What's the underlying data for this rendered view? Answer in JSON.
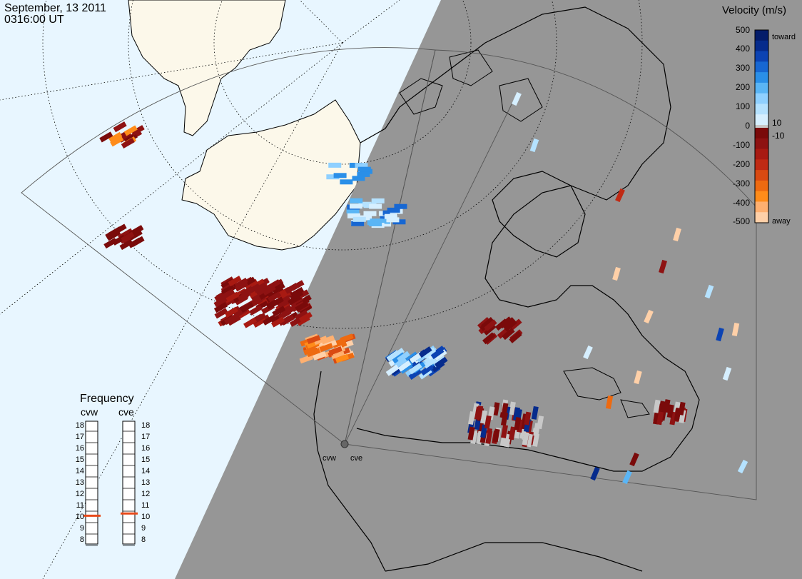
{
  "header": {
    "date": "September, 13 2011",
    "time": "0316:00 UT"
  },
  "legend": {
    "title": "Velocity (m/s)",
    "ticks": [
      "500",
      "400",
      "300",
      "200",
      "100",
      "10",
      "0",
      "-10",
      "-100",
      "-200",
      "-300",
      "-400",
      "-500"
    ],
    "toward_label": "toward",
    "away_label": "away",
    "colors_toward": [
      "#d6efff",
      "#b5e2ff",
      "#8fd0ff",
      "#5ab5f5",
      "#2a8fe8",
      "#1767d2",
      "#0c43b3",
      "#062b8c",
      "#041c6a"
    ],
    "colors_away": [
      "#7a0a0a",
      "#8e1212",
      "#a81a12",
      "#c02a14",
      "#d94a12",
      "#ee6a10",
      "#ff8c1a",
      "#ffb070",
      "#ffd0a8"
    ],
    "ground_scatter_color": "#c8c8c8"
  },
  "frequency_panel": {
    "title": "Frequency",
    "radars": [
      {
        "label": "cvw",
        "value_mhz": 10.6
      },
      {
        "label": "cve",
        "value_mhz": 10.8
      }
    ],
    "scale": [
      "8",
      "9",
      "10",
      "11",
      "12",
      "13",
      "14",
      "15",
      "16",
      "17",
      "18"
    ],
    "indicator_color": "#e84a1a"
  },
  "radar_sites": [
    "cvw",
    "cve"
  ],
  "map_colors": {
    "ocean": "#e8f6ff",
    "land": "#fcf8ea",
    "night": "#969696"
  }
}
